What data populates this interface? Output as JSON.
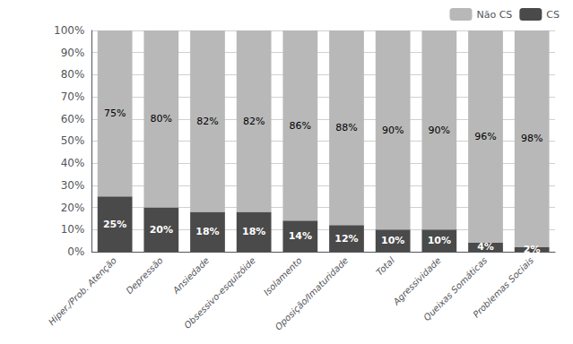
{
  "chart_data": {
    "type": "bar",
    "stacked": true,
    "categories": [
      "Hiper./Prob. Atenção",
      "Depressão",
      "Ansiedade",
      "Obsessivo-esquizóide",
      "Isolamento",
      "Oposição/Imaturidade",
      "Total",
      "Agressividade",
      "Queixas Somáticas",
      "Problemas Sociais"
    ],
    "series": [
      {
        "name": "CS",
        "color": "#4a4a4a",
        "values": [
          25,
          20,
          18,
          18,
          14,
          12,
          10,
          10,
          4,
          2
        ],
        "value_labels": [
          "25%",
          "20%",
          "18%",
          "18%",
          "14%",
          "12%",
          "10%",
          "10%",
          "4%",
          "2%"
        ]
      },
      {
        "name": "Não CS",
        "color": "#b8b8b8",
        "values": [
          75,
          80,
          82,
          82,
          86,
          88,
          90,
          90,
          96,
          98
        ],
        "value_labels": [
          "75%",
          "80%",
          "82%",
          "82%",
          "86%",
          "88%",
          "90%",
          "90%",
          "96%",
          "98%"
        ]
      }
    ],
    "ylim": [
      0,
      100
    ],
    "yticks": [
      {
        "value": 0,
        "label": "0%"
      },
      {
        "value": 10,
        "label": "10%"
      },
      {
        "value": 20,
        "label": "20%"
      },
      {
        "value": 30,
        "label": "30%"
      },
      {
        "value": 40,
        "label": "40%"
      },
      {
        "value": 50,
        "label": "50%"
      },
      {
        "value": 60,
        "label": "60%"
      },
      {
        "value": 70,
        "label": "70%"
      },
      {
        "value": 80,
        "label": "80%"
      },
      {
        "value": 90,
        "label": "90%"
      },
      {
        "value": 100,
        "label": "100%"
      }
    ],
    "grid": true,
    "data_labels": true,
    "legend": "upper right"
  }
}
